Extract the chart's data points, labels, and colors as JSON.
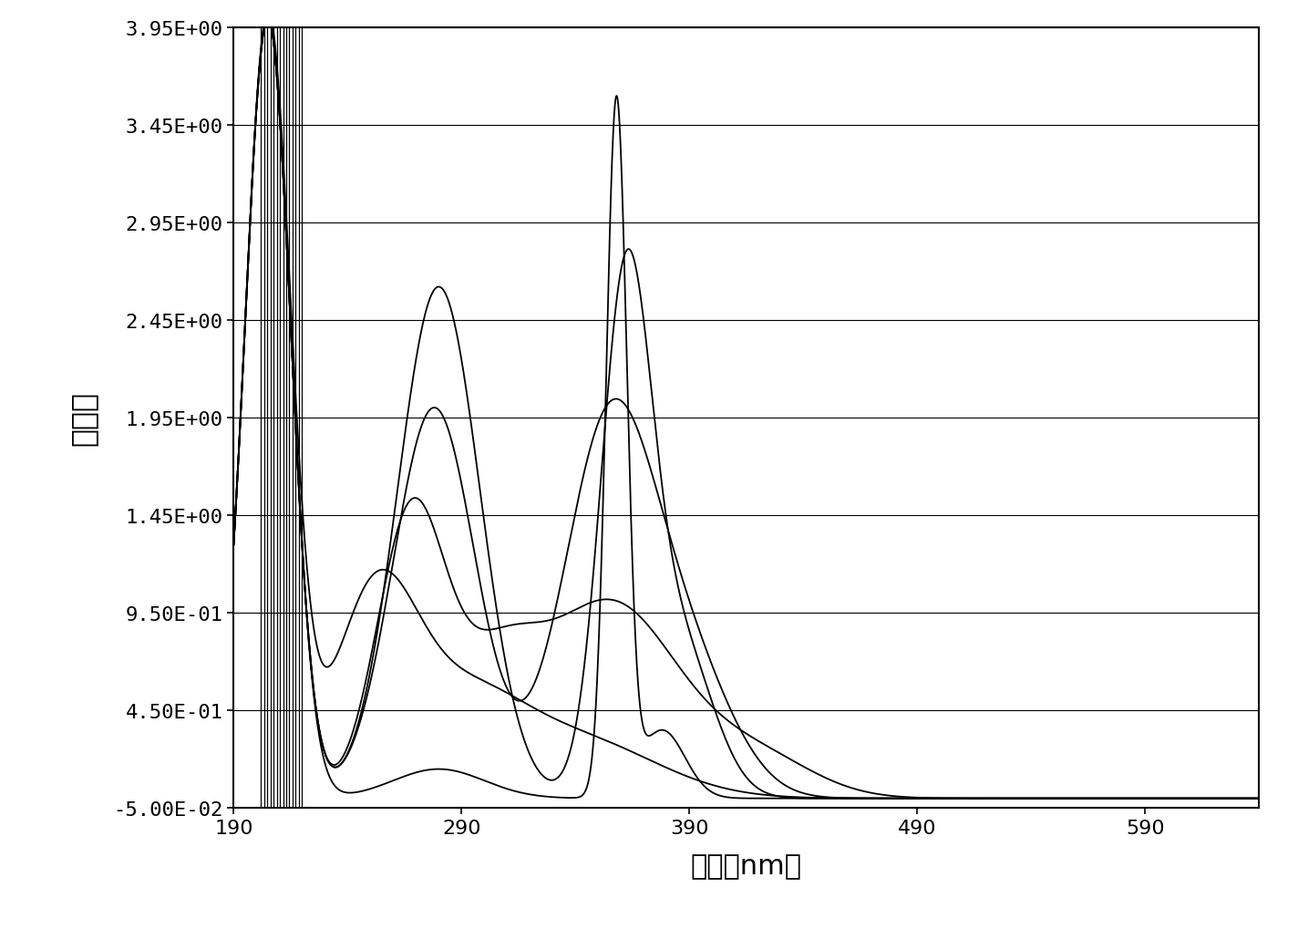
{
  "title": "",
  "xlabel": "波长（nm）",
  "ylabel": "吸光度",
  "xmin": 190,
  "xmax": 640,
  "ymin": -0.05,
  "ymax": 3.95,
  "yticks": [
    -0.05,
    0.45,
    0.95,
    1.45,
    1.95,
    2.45,
    2.95,
    3.45,
    3.95
  ],
  "ytick_labels": [
    "-5.00E-02",
    "4.50E-01",
    "9.50E-01",
    "1.45E+00",
    "1.95E+00",
    "2.45E+00",
    "2.95E+00",
    "3.45E+00",
    "3.95E+00"
  ],
  "xticks": [
    190,
    290,
    390,
    490,
    590
  ],
  "background_color": "#ffffff",
  "line_color": "#000000",
  "vline_start": 202,
  "vline_end": 220,
  "vline_count": 14
}
